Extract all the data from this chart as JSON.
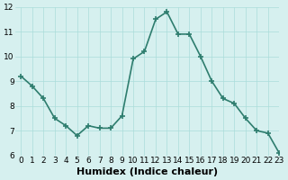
{
  "x": [
    0,
    1,
    2,
    3,
    4,
    5,
    6,
    7,
    8,
    9,
    10,
    11,
    12,
    13,
    14,
    15,
    16,
    17,
    18,
    19,
    20,
    21,
    22,
    23
  ],
  "y": [
    9.2,
    8.8,
    8.3,
    7.5,
    7.2,
    6.8,
    7.2,
    7.1,
    7.1,
    7.6,
    9.9,
    10.2,
    11.5,
    11.8,
    10.9,
    10.9,
    10.0,
    9.0,
    8.3,
    8.1,
    7.5,
    7.0,
    6.9,
    6.1
  ],
  "xlabel": "Humidex (Indice chaleur)",
  "ylim": [
    6,
    12
  ],
  "xlim": [
    -0.5,
    23
  ],
  "yticks": [
    6,
    7,
    8,
    9,
    10,
    11,
    12
  ],
  "xticks": [
    0,
    1,
    2,
    3,
    4,
    5,
    6,
    7,
    8,
    9,
    10,
    11,
    12,
    13,
    14,
    15,
    16,
    17,
    18,
    19,
    20,
    21,
    22,
    23
  ],
  "line_color": "#2e7d6e",
  "bg_color": "#d6f0ef",
  "grid_color": "#aaddda",
  "tick_label_fontsize": 6.5,
  "xlabel_fontsize": 8
}
